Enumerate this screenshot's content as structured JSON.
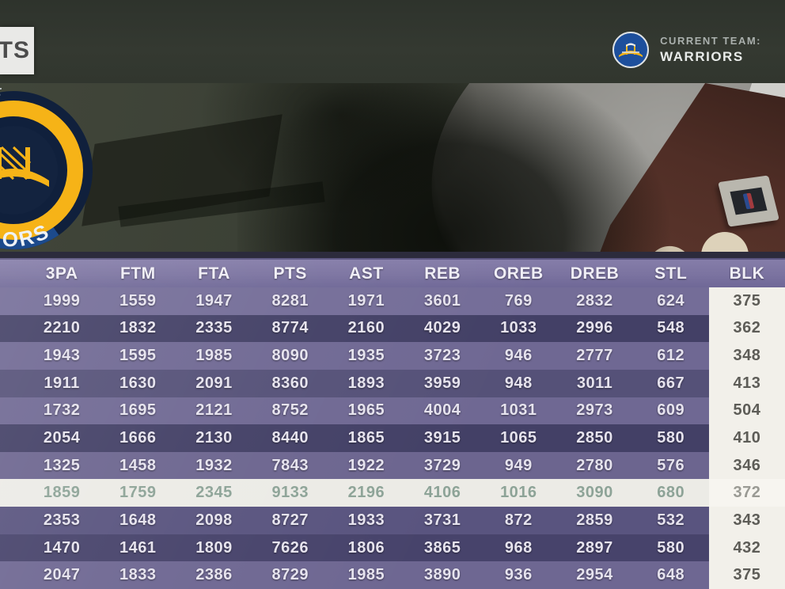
{
  "header": {
    "tab_label": "TS",
    "current_team_label": "CURRENT TEAM:",
    "current_team_name": "WARRIORS"
  },
  "icons": {
    "team_logo": "warriors-logo",
    "big_team_logo": "warriors-logo-large",
    "big_logo_arc_text": "ORS",
    "big_logo_top_text": "ST",
    "background_prop": "nba-logo-box"
  },
  "table": {
    "columns": [
      "3PA",
      "FTM",
      "FTA",
      "PTS",
      "AST",
      "REB",
      "OREB",
      "DREB",
      "STL",
      "BLK"
    ],
    "highlighted_row_index": 7,
    "highlighted_column": "BLK",
    "rows": [
      [
        "1999",
        "1559",
        "1947",
        "8281",
        "1971",
        "3601",
        "769",
        "2832",
        "624",
        "375"
      ],
      [
        "2210",
        "1832",
        "2335",
        "8774",
        "2160",
        "4029",
        "1033",
        "2996",
        "548",
        "362"
      ],
      [
        "1943",
        "1595",
        "1985",
        "8090",
        "1935",
        "3723",
        "946",
        "2777",
        "612",
        "348"
      ],
      [
        "1911",
        "1630",
        "2091",
        "8360",
        "1893",
        "3959",
        "948",
        "3011",
        "667",
        "413"
      ],
      [
        "1732",
        "1695",
        "2121",
        "8752",
        "1965",
        "4004",
        "1031",
        "2973",
        "609",
        "504"
      ],
      [
        "2054",
        "1666",
        "2130",
        "8440",
        "1865",
        "3915",
        "1065",
        "2850",
        "580",
        "410"
      ],
      [
        "1325",
        "1458",
        "1932",
        "7843",
        "1922",
        "3729",
        "949",
        "2780",
        "576",
        "346"
      ],
      [
        "1859",
        "1759",
        "2345",
        "9133",
        "2196",
        "4106",
        "1016",
        "3090",
        "680",
        "372"
      ],
      [
        "2353",
        "1648",
        "2098",
        "8727",
        "1933",
        "3731",
        "872",
        "2859",
        "532",
        "343"
      ],
      [
        "1470",
        "1461",
        "1809",
        "7626",
        "1806",
        "3865",
        "968",
        "2897",
        "580",
        "432"
      ],
      [
        "2047",
        "1833",
        "2386",
        "8729",
        "1985",
        "3890",
        "936",
        "2954",
        "648",
        "375"
      ]
    ]
  },
  "colors": {
    "header_purple": "#7b73a0",
    "row_dark": "#434066",
    "row_mid": "#6e6792",
    "highlight_bg": "#ecebe6",
    "highlight_text": "#8da397",
    "blk_column_bg": "#f2f0ea",
    "warriors_blue": "#1d4f9c",
    "warriors_gold": "#f6b317"
  }
}
